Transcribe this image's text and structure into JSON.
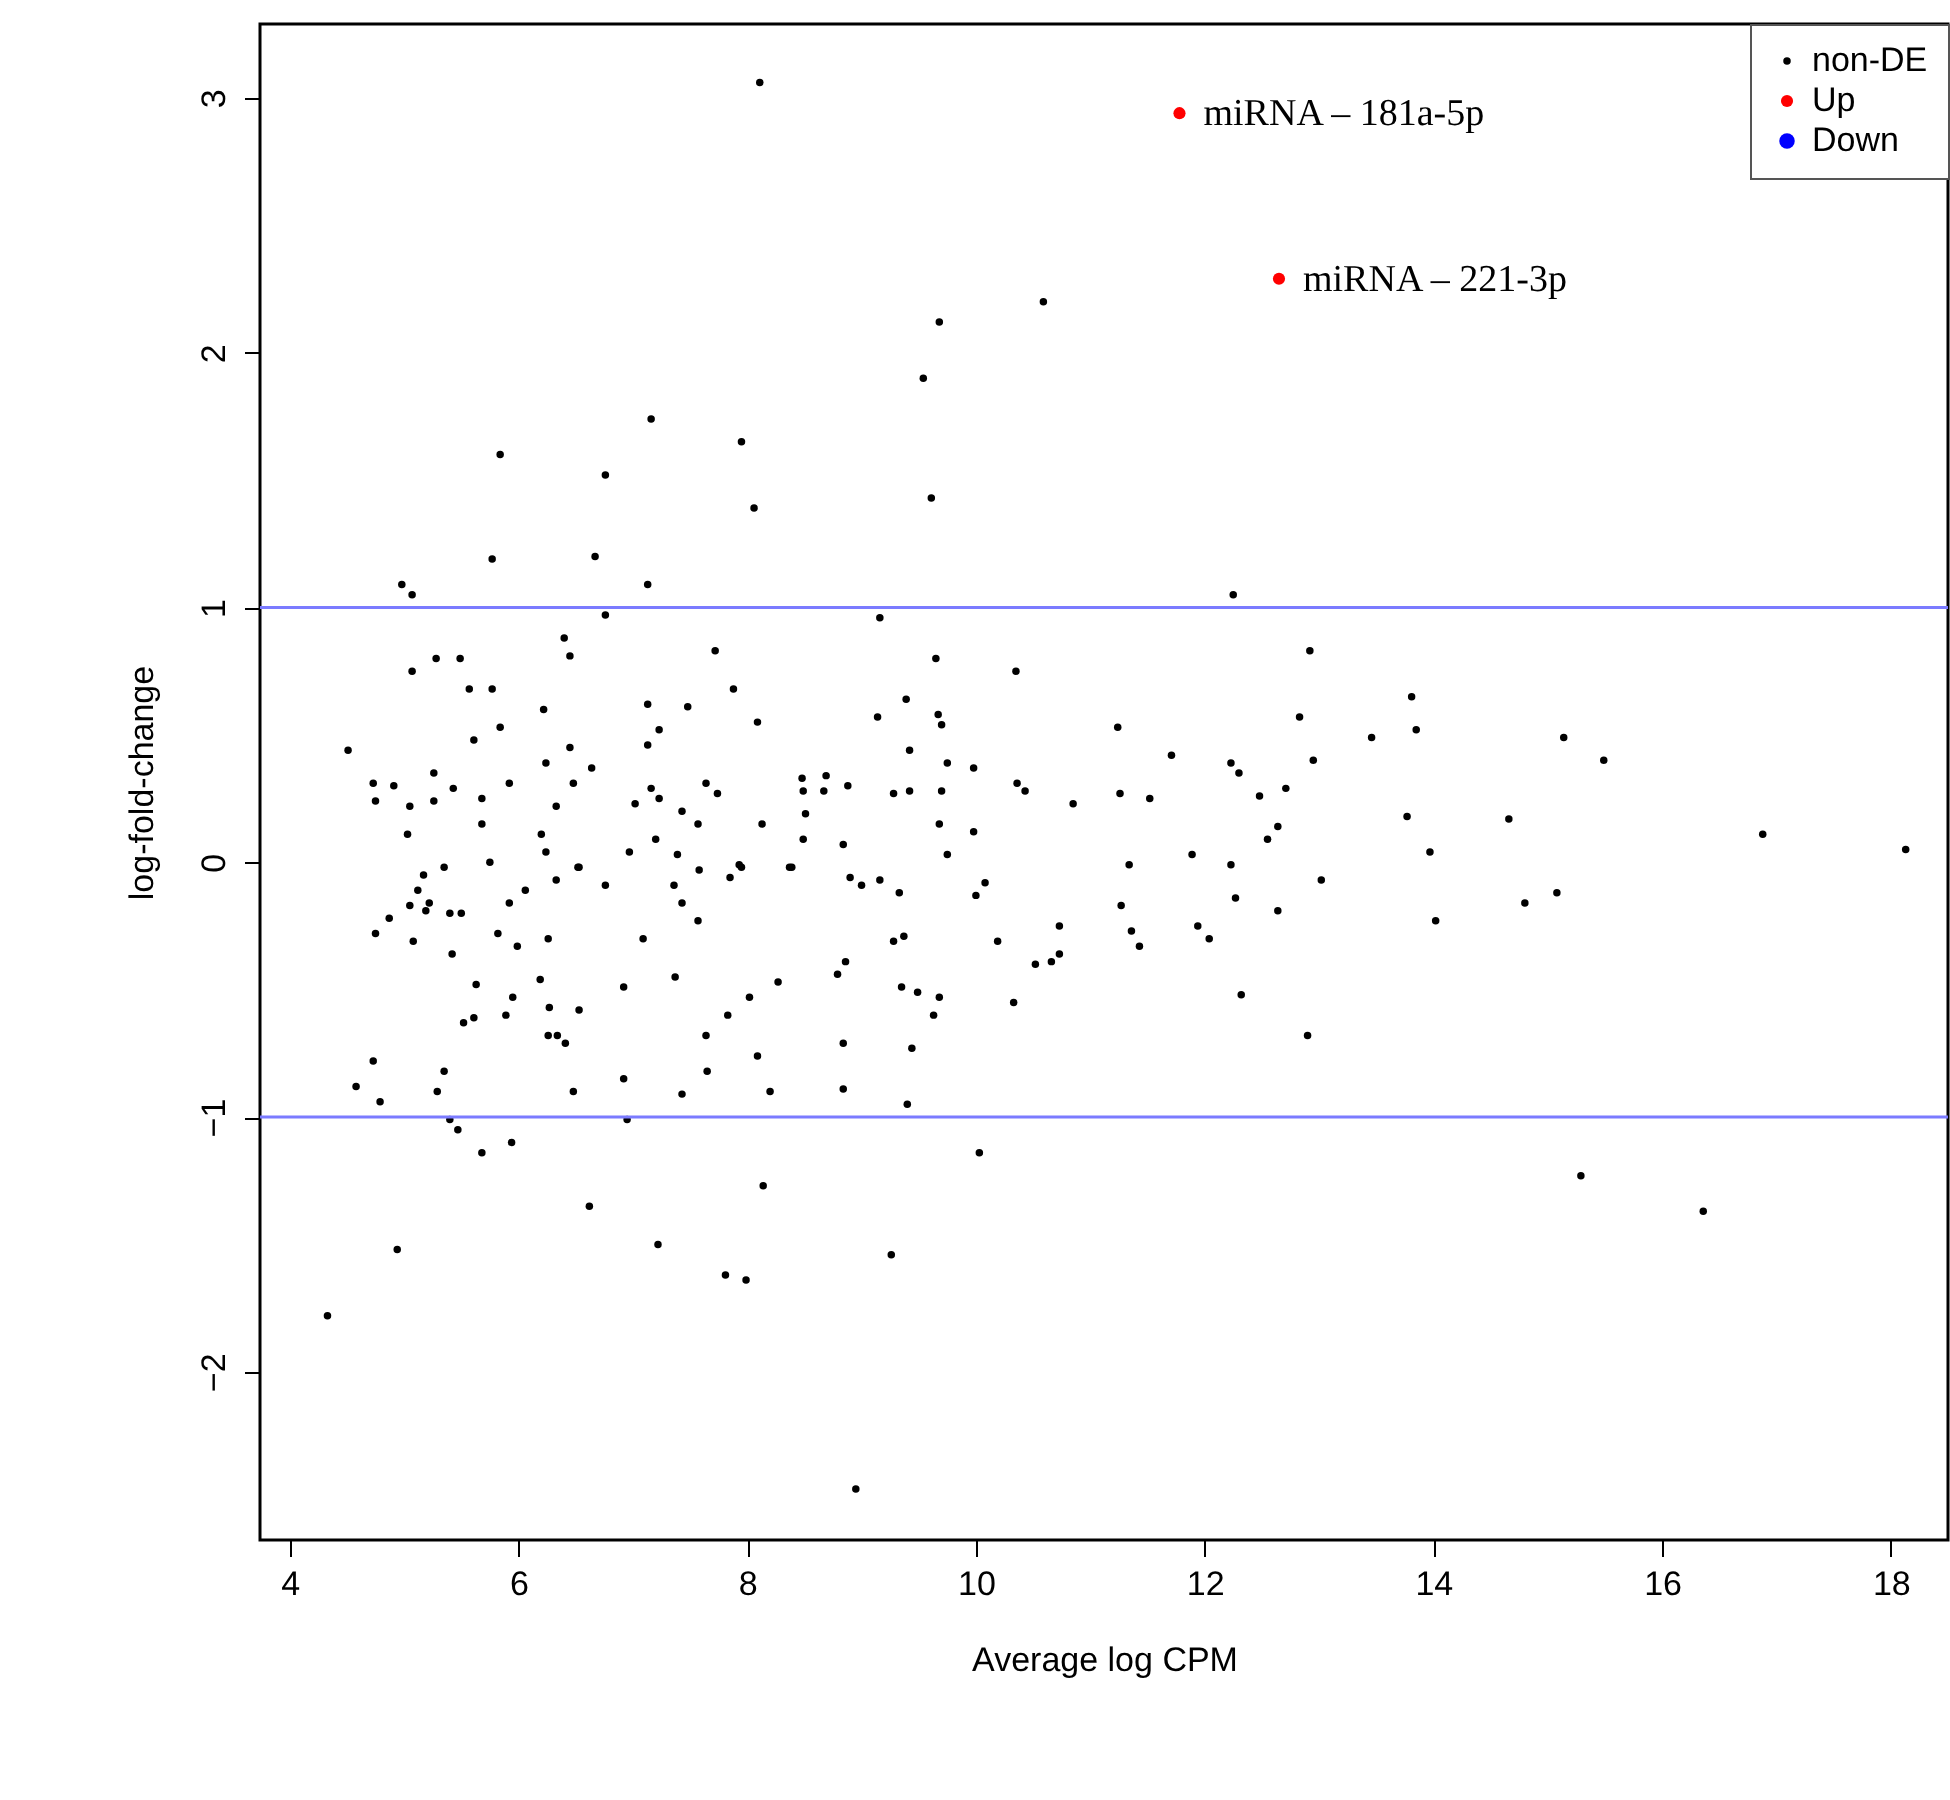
{
  "chart_data": {
    "type": "scatter",
    "xlabel": "Average log CPM",
    "ylabel": "log-fold-change",
    "xlim": [
      3.74,
      18.5
    ],
    "ylim": [
      -2.66,
      3.29
    ],
    "xticks": [
      4,
      6,
      8,
      10,
      12,
      14,
      16,
      18
    ],
    "yticks": [
      -2,
      -1,
      0,
      1,
      2,
      3
    ],
    "grid": false,
    "legend": "top right",
    "marker": "circle",
    "series": [
      {
        "name": "non-DE",
        "color": "#000000",
        "x": [
          8.11,
          9.68,
          9.54,
          10.59,
          9.61,
          7.16,
          7.95,
          5.84,
          6.76,
          8.06,
          5.77,
          6.67,
          7.13,
          4.98,
          5.07,
          12.25,
          9.16,
          6.76,
          6.4,
          6.45,
          7.72,
          5.07,
          5.28,
          5.49,
          7.88,
          8.09,
          7.13,
          7.48,
          7.23,
          7.13,
          6.22,
          5.84,
          5.77,
          5.57,
          5.61,
          6.45,
          6.64,
          6.24,
          4.51,
          4.73,
          4.91,
          4.75,
          5.26,
          5.43,
          5.92,
          5.26,
          5.05,
          5.68,
          5.68,
          5.03,
          6.33,
          6.48,
          6.2,
          6.24,
          5.75,
          7.02,
          7.16,
          7.23,
          7.43,
          7.57,
          6.97,
          7.2,
          7.39,
          7.64,
          7.74,
          8.13,
          8.48,
          8.49,
          8.49,
          8.51,
          6.52,
          7.95,
          8.39,
          9.65,
          10.35,
          12.92,
          9.39,
          9.14,
          9.67,
          9.7,
          11.24,
          12.83,
          13.81,
          13.85,
          9.42,
          9.75,
          9.98,
          11.71,
          12.23,
          12.3,
          12.95,
          13.46,
          8.69,
          8.67,
          8.88,
          9.28,
          9.42,
          9.7,
          10.36,
          10.43,
          10.85,
          11.26,
          11.52,
          12.48,
          12.71,
          13.77,
          8.84,
          9.68,
          9.98,
          9.75,
          12.55,
          12.64,
          11.89,
          11.34,
          12.23,
          15.14,
          15.49,
          14.66,
          13.97,
          16.88,
          18.13,
          14.02,
          14.8,
          15.08,
          15.29,
          16.36,
          8.95,
          9.26,
          10.03,
          8.84,
          9.4,
          8.84,
          9.44,
          12.9,
          9.63,
          9.35,
          9.49,
          9.68,
          10.33,
          12.32,
          8.79,
          8.86,
          9.28,
          9.37,
          10.19,
          10.52,
          10.66,
          10.73,
          10.73,
          11.27,
          11.36,
          11.43,
          11.94,
          12.04,
          12.27,
          12.64,
          13.02,
          8.9,
          9.0,
          9.16,
          9.33,
          10.0,
          10.08,
          5.17,
          5.35,
          5.12,
          5.05,
          5.22,
          5.19,
          4.87,
          4.75,
          5.08,
          5.4,
          5.5,
          5.42,
          5.92,
          6.06,
          6.33,
          6.53,
          6.76,
          5.82,
          5.99,
          6.26,
          7.09,
          7.36,
          7.43,
          7.57,
          7.58,
          7.85,
          7.93,
          8.37,
          5.63,
          6.19,
          6.92,
          7.37,
          8.27,
          8.02,
          5.95,
          6.27,
          6.53,
          5.52,
          5.61,
          5.89,
          7.83,
          7.64,
          6.26,
          6.34,
          6.41,
          8.09,
          4.73,
          5.35,
          6.92,
          7.65,
          4.58,
          4.79,
          5.29,
          6.48,
          7.43,
          8.2,
          5.4,
          5.47,
          6.95,
          5.94,
          5.68,
          8.14,
          6.62,
          4.94,
          7.22,
          7.81,
          7.99,
          4.33
        ],
        "values": [
          3.06,
          2.12,
          1.9,
          2.2,
          1.43,
          1.74,
          1.65,
          1.6,
          1.52,
          1.39,
          1.19,
          1.2,
          1.09,
          1.09,
          1.05,
          1.05,
          0.96,
          0.97,
          0.88,
          0.81,
          0.83,
          0.75,
          0.8,
          0.8,
          0.68,
          0.55,
          0.62,
          0.61,
          0.52,
          0.46,
          0.6,
          0.53,
          0.68,
          0.68,
          0.48,
          0.45,
          0.37,
          0.39,
          0.44,
          0.31,
          0.3,
          0.24,
          0.35,
          0.29,
          0.31,
          0.24,
          0.22,
          0.25,
          0.15,
          0.11,
          0.22,
          0.31,
          0.11,
          0.04,
          0.0,
          0.23,
          0.29,
          0.25,
          0.2,
          0.15,
          0.04,
          0.09,
          0.03,
          0.31,
          0.27,
          0.15,
          0.33,
          0.28,
          0.09,
          0.19,
          -0.02,
          -0.02,
          -0.02,
          0.8,
          0.75,
          0.83,
          0.64,
          0.57,
          0.58,
          0.54,
          0.53,
          0.57,
          0.65,
          0.52,
          0.44,
          0.39,
          0.37,
          0.42,
          0.39,
          0.35,
          0.4,
          0.49,
          0.34,
          0.28,
          0.3,
          0.27,
          0.28,
          0.28,
          0.31,
          0.28,
          0.23,
          0.27,
          0.25,
          0.26,
          0.29,
          0.18,
          0.07,
          0.15,
          0.12,
          0.03,
          0.09,
          0.14,
          0.03,
          -0.01,
          -0.01,
          0.49,
          0.4,
          0.17,
          0.04,
          0.11,
          0.05,
          -0.23,
          -0.16,
          -0.12,
          -1.23,
          -1.37,
          -2.46,
          -1.54,
          -1.14,
          -0.89,
          -0.95,
          -0.71,
          -0.73,
          -0.68,
          -0.6,
          -0.49,
          -0.51,
          -0.53,
          -0.55,
          -0.52,
          -0.44,
          -0.39,
          -0.31,
          -0.29,
          -0.31,
          -0.4,
          -0.39,
          -0.36,
          -0.25,
          -0.17,
          -0.27,
          -0.33,
          -0.25,
          -0.3,
          -0.14,
          -0.19,
          -0.07,
          -0.06,
          -0.09,
          -0.07,
          -0.12,
          -0.13,
          -0.08,
          -0.05,
          -0.02,
          -0.11,
          -0.17,
          -0.16,
          -0.19,
          -0.22,
          -0.28,
          -0.31,
          -0.2,
          -0.2,
          -0.36,
          -0.16,
          -0.11,
          -0.07,
          -0.02,
          -0.09,
          -0.28,
          -0.33,
          -0.3,
          -0.3,
          -0.09,
          -0.16,
          -0.23,
          -0.03,
          -0.06,
          -0.01,
          -0.02,
          -0.48,
          -0.46,
          -0.49,
          -0.45,
          -0.47,
          -0.53,
          -0.53,
          -0.57,
          -0.58,
          -0.63,
          -0.61,
          -0.6,
          -0.6,
          -0.68,
          -0.68,
          -0.68,
          -0.71,
          -0.76,
          -0.78,
          -0.82,
          -0.85,
          -0.82,
          -0.88,
          -0.94,
          -0.9,
          -0.9,
          -0.91,
          -0.9,
          -1.01,
          -1.05,
          -1.01,
          -1.1,
          -1.14,
          -1.27,
          -1.35,
          -1.52,
          -1.5,
          -1.62,
          -1.64,
          -1.78
        ]
      },
      {
        "name": "Up",
        "color": "#ff0000",
        "x": [
          11.78,
          12.65
        ],
        "values": [
          2.94,
          2.29
        ]
      },
      {
        "name": "Down",
        "color": "#0000ff"
      }
    ],
    "ref_lines": [
      {
        "axis": "y",
        "value": 1,
        "color": "#7b7bff"
      },
      {
        "axis": "y",
        "value": -1,
        "color": "#7b7bff"
      }
    ],
    "annotations": [
      {
        "text": "miRNA – 181a-5p",
        "x": 11.78,
        "y": 2.94
      },
      {
        "text": "miRNA – 221-3p",
        "x": 12.65,
        "y": 2.29
      }
    ]
  }
}
